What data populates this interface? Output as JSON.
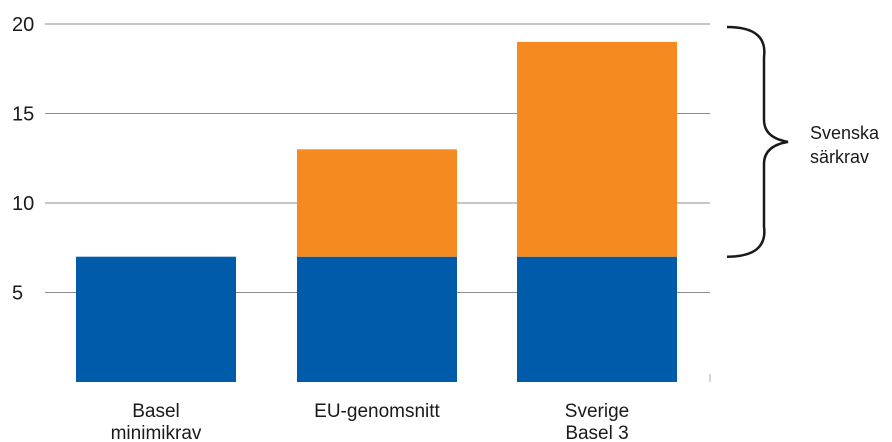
{
  "chart_data": {
    "type": "bar",
    "stacked": true,
    "categories": [
      [
        "Basel",
        "minimikrav"
      ],
      [
        "EU-genomsnitt"
      ],
      [
        "Sverige",
        "Basel 3"
      ]
    ],
    "series": [
      {
        "values": [
          7,
          7,
          7
        ],
        "color": "#005BAA"
      },
      {
        "values": [
          0,
          6,
          12
        ],
        "color": "#F58B20"
      }
    ],
    "yticks": [
      5,
      10,
      15,
      20
    ],
    "ylim": [
      0,
      20
    ],
    "grid": true,
    "title": "",
    "xlabel": "",
    "ylabel": "",
    "annotation": {
      "lines": [
        "Svenska",
        "särkrav"
      ],
      "range": [
        7,
        20
      ]
    }
  }
}
